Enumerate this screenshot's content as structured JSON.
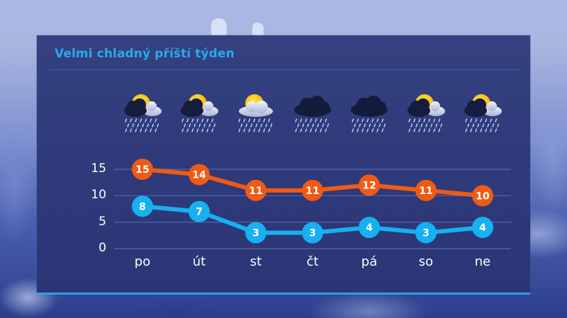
{
  "title": "Velmi chladný příští týden",
  "colors": {
    "panel": "#2f3b7b",
    "title": "#2aa8ee",
    "max_series": "#f05a14",
    "min_series": "#17b0f0",
    "grid": "#5a68a8",
    "accent_line": "#2aa0e6"
  },
  "days": [
    {
      "label": "po",
      "icon": "partly-sunny-dark-cloud-rain-icon",
      "max": 15,
      "min": 8
    },
    {
      "label": "út",
      "icon": "partly-sunny-dark-cloud-rain-icon",
      "max": 14,
      "min": 7
    },
    {
      "label": "st",
      "icon": "partly-sunny-light-cloud-rain-icon",
      "max": 11,
      "min": 3
    },
    {
      "label": "čt",
      "icon": "dark-cloud-rain-icon",
      "max": 11,
      "min": 3
    },
    {
      "label": "pá",
      "icon": "dark-cloud-rain-icon",
      "max": 12,
      "min": 4
    },
    {
      "label": "so",
      "icon": "partly-sunny-dark-cloud-rain-icon",
      "max": 11,
      "min": 3
    },
    {
      "label": "ne",
      "icon": "partly-sunny-dark-cloud-rain-icon",
      "max": 10,
      "min": 4
    }
  ],
  "y_ticks": [
    "15",
    "10",
    "5",
    "0"
  ],
  "chart_data": {
    "type": "line",
    "title": "Velmi chladný příští týden",
    "categories": [
      "po",
      "út",
      "st",
      "čt",
      "pá",
      "so",
      "ne"
    ],
    "series": [
      {
        "name": "max",
        "color": "#f05a14",
        "values": [
          15,
          14,
          11,
          11,
          12,
          11,
          10
        ]
      },
      {
        "name": "min",
        "color": "#17b0f0",
        "values": [
          8,
          7,
          3,
          3,
          4,
          3,
          4
        ]
      }
    ],
    "xlabel": "",
    "ylabel": "",
    "ylim": [
      0,
      15
    ],
    "yticks": [
      0,
      5,
      10,
      15
    ],
    "grid": true,
    "data_labels": true,
    "legend": "none"
  }
}
